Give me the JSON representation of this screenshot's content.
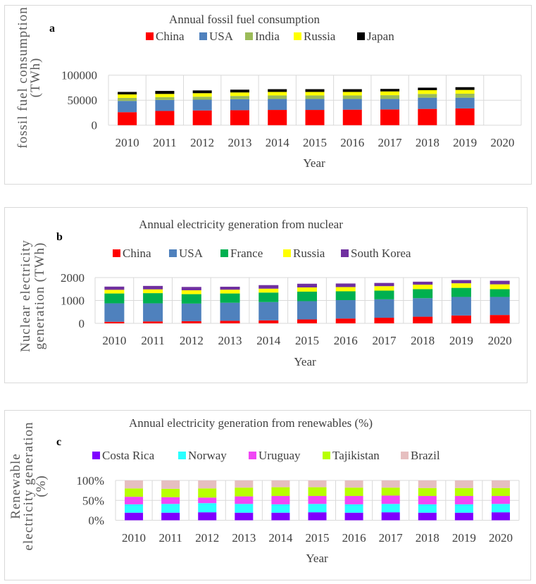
{
  "chart_data": [
    {
      "id": "a",
      "type": "bar",
      "stacked": true,
      "panel_label": "a",
      "title": "Annual fossil fuel consumption",
      "xlabel": "Year",
      "ylabel": "fossil fuel consumption (TWh)",
      "ylabel_lines": [
        "fossil fuel consumption",
        "(TWh)"
      ],
      "ylim": [
        0,
        100000
      ],
      "yticks": [
        0,
        50000,
        100000
      ],
      "ytick_labels": [
        "0",
        "50000",
        "100000"
      ],
      "grid": true,
      "legend_position": "top",
      "categories": [
        "2010",
        "2011",
        "2012",
        "2013",
        "2014",
        "2015",
        "2016",
        "2017",
        "2018",
        "2019",
        "2020"
      ],
      "series": [
        {
          "name": "China",
          "color": "#ff0000",
          "values": [
            26000,
            28500,
            29500,
            30000,
            30500,
            30500,
            31000,
            31500,
            32500,
            33500,
            0
          ]
        },
        {
          "name": "USA",
          "color": "#4f81bd",
          "values": [
            22500,
            22000,
            21500,
            22000,
            22000,
            22000,
            21500,
            21000,
            22500,
            21500,
            0
          ]
        },
        {
          "name": "India",
          "color": "#9bbb59",
          "values": [
            6000,
            5500,
            6000,
            6500,
            7000,
            7000,
            7000,
            7500,
            7500,
            8000,
            0
          ]
        },
        {
          "name": "Russia",
          "color": "#ffff00",
          "values": [
            7000,
            6500,
            7000,
            7000,
            7000,
            7000,
            7000,
            7500,
            7500,
            7500,
            0
          ]
        },
        {
          "name": "Japan",
          "color": "#000000",
          "values": [
            5000,
            6000,
            5500,
            5500,
            5500,
            5500,
            5500,
            5000,
            5000,
            5500,
            0
          ]
        }
      ]
    },
    {
      "id": "b",
      "type": "bar",
      "stacked": true,
      "panel_label": "b",
      "title": "Annual electricity generation from nuclear",
      "xlabel": "Year",
      "ylabel": "Nuclear electricity generation (TWh)",
      "ylabel_lines": [
        "Nuclear electricity",
        "generation (TWh)"
      ],
      "ylim": [
        0,
        2000
      ],
      "yticks": [
        0,
        1000,
        2000
      ],
      "ytick_labels": [
        "0",
        "1000",
        "2000"
      ],
      "grid": true,
      "legend_position": "top",
      "categories": [
        "2010",
        "2011",
        "2012",
        "2013",
        "2014",
        "2015",
        "2016",
        "2017",
        "2018",
        "2019",
        "2020"
      ],
      "series": [
        {
          "name": "China",
          "color": "#ff0000",
          "values": [
            70,
            85,
            95,
            110,
            130,
            170,
            210,
            245,
            290,
            345,
            365
          ]
        },
        {
          "name": "USA",
          "color": "#4f81bd",
          "values": [
            805,
            790,
            770,
            790,
            800,
            800,
            805,
            805,
            810,
            810,
            790
          ]
        },
        {
          "name": "France",
          "color": "#00b050",
          "values": [
            430,
            445,
            410,
            405,
            415,
            415,
            385,
            380,
            395,
            395,
            340
          ]
        },
        {
          "name": "Russia",
          "color": "#ffff00",
          "values": [
            160,
            165,
            170,
            165,
            170,
            185,
            185,
            195,
            195,
            200,
            210
          ]
        },
        {
          "name": "South Korea",
          "color": "#7030a0",
          "values": [
            140,
            150,
            145,
            130,
            155,
            160,
            155,
            140,
            130,
            140,
            155
          ]
        }
      ]
    },
    {
      "id": "c",
      "type": "bar",
      "stacked": true,
      "percent_stacked": true,
      "panel_label": "c",
      "title": "Annual electricity generation from renewables (%)",
      "xlabel": "Year",
      "ylabel": "Renewable electricity generation (%)",
      "ylabel_lines": [
        "Renewable",
        "electricity generation",
        "(%)"
      ],
      "ylim": [
        0,
        100
      ],
      "yticks": [
        0,
        50,
        100
      ],
      "ytick_labels": [
        "0%",
        "50%",
        "100%"
      ],
      "grid": true,
      "legend_position": "top",
      "categories": [
        "2010",
        "2011",
        "2012",
        "2013",
        "2014",
        "2015",
        "2016",
        "2017",
        "2018",
        "2019",
        "2020"
      ],
      "series": [
        {
          "name": "Costa Rica",
          "color": "#7f00ff",
          "values": [
            19,
            19,
            20,
            19,
            19,
            20,
            19,
            20,
            19,
            19,
            20
          ]
        },
        {
          "name": "Norway",
          "color": "#29ffff",
          "values": [
            21,
            22,
            23,
            22,
            21,
            21,
            21,
            21,
            21,
            21,
            21
          ]
        },
        {
          "name": "Uruguay",
          "color": "#f047f5",
          "values": [
            19,
            17,
            14,
            19,
            21,
            20,
            21,
            21,
            21,
            21,
            20
          ]
        },
        {
          "name": "Tajikistan",
          "color": "#b8ff00",
          "values": [
            21,
            21,
            23,
            22,
            22,
            22,
            21,
            20,
            20,
            20,
            20
          ]
        },
        {
          "name": "Brazil",
          "color": "#e6bfc0",
          "values": [
            20,
            21,
            20,
            18,
            17,
            17,
            18,
            18,
            19,
            19,
            19
          ]
        }
      ]
    }
  ]
}
